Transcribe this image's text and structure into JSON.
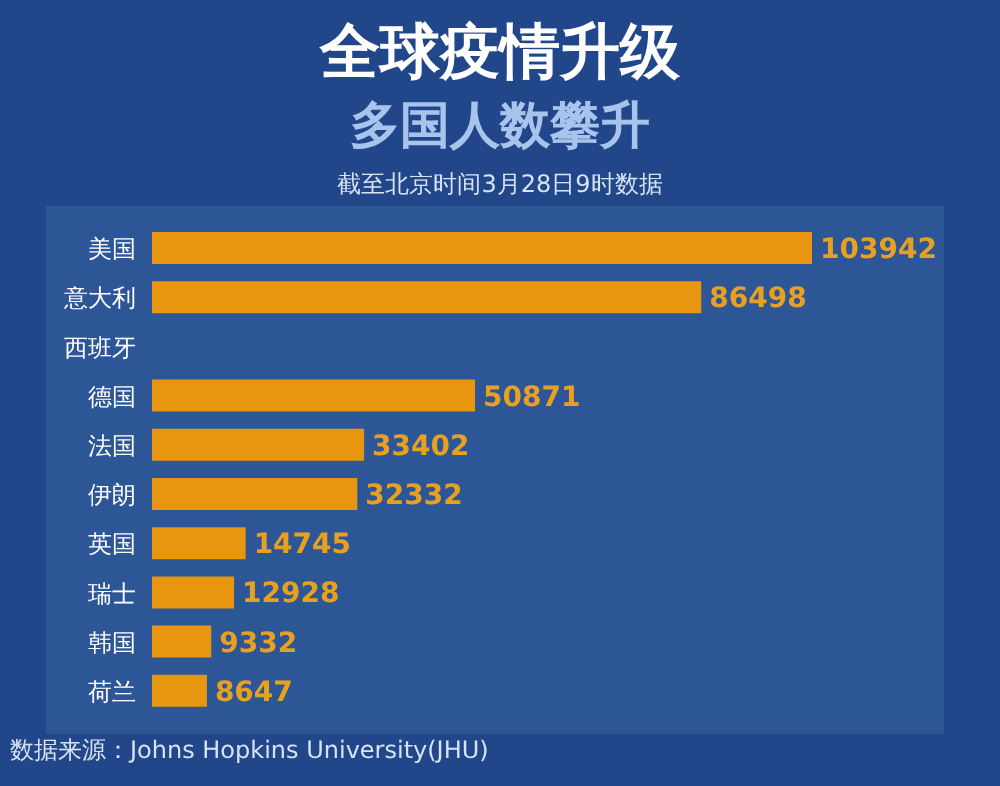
{
  "chart_data": {
    "type": "bar",
    "orientation": "horizontal",
    "title": "全球疫情升级",
    "subtitle": "多国人数攀升",
    "categories": [
      "美国",
      "意大利",
      "西班牙",
      "德国",
      "法国",
      "伊朗",
      "英国",
      "瑞士",
      "韩国",
      "荷兰"
    ],
    "values": [
      103942,
      86498,
      null,
      50871,
      33402,
      32332,
      14745,
      12928,
      9332,
      8647
    ],
    "color": "#e8960f",
    "data_labels": true,
    "annotations": [
      "截至北京时间3月28日9时数据",
      "数据来源：Johns Hopkins University(JHU)"
    ]
  }
}
